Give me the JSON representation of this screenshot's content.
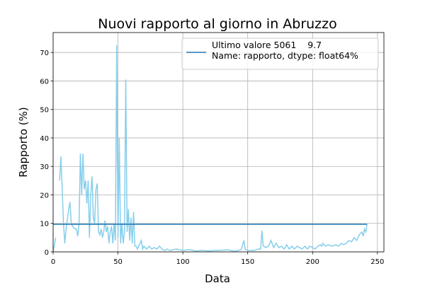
{
  "chart_data": {
    "type": "line",
    "title": "Nuovi rapporto al giorno in Abruzzo",
    "xlabel": "Data",
    "ylabel": "Rapporto (%)",
    "xlim": [
      0,
      255
    ],
    "ylim": [
      0,
      77
    ],
    "xticks": [
      0,
      50,
      100,
      150,
      200,
      250
    ],
    "yticks": [
      0,
      10,
      20,
      30,
      40,
      50,
      60,
      70
    ],
    "grid": true,
    "legend": "upper right",
    "series": [
      {
        "color": "#87ceeb",
        "x": [
          0,
          2,
          3,
          5,
          6,
          8,
          9,
          10,
          12,
          13,
          14,
          15,
          17,
          18,
          19,
          20,
          21,
          22,
          23,
          24,
          25,
          26,
          27,
          28,
          29,
          30,
          31,
          32,
          33,
          34,
          35,
          36,
          37,
          38,
          39,
          40,
          41,
          42,
          43,
          44,
          45,
          46,
          47,
          48,
          49,
          50,
          51,
          52,
          53,
          54,
          55,
          56,
          57,
          58,
          59,
          60,
          61,
          62,
          63,
          64,
          65,
          66,
          67,
          68,
          69,
          70,
          72,
          74,
          76,
          78,
          80,
          82,
          84,
          86,
          88,
          90,
          95,
          100,
          105,
          110,
          115,
          120,
          125,
          130,
          135,
          140,
          145,
          147,
          148,
          150,
          155,
          158,
          160,
          161,
          162,
          164,
          166,
          168,
          170,
          172,
          174,
          176,
          178,
          180,
          182,
          184,
          186,
          188,
          190,
          192,
          194,
          196,
          198,
          200,
          202,
          204,
          206,
          207,
          208,
          210,
          212,
          215,
          218,
          220,
          222,
          224,
          226,
          228,
          230,
          232,
          234,
          236,
          238,
          239,
          240,
          241,
          242
        ],
        "values": [
          0,
          5,
          null,
          25,
          33.5,
          10,
          3,
          8,
          15,
          17.5,
          10,
          9,
          8,
          8,
          5.5,
          10,
          34.5,
          20,
          34.5,
          22,
          25,
          17,
          25,
          5,
          20,
          26.5,
          12,
          10,
          22,
          24,
          7,
          6,
          8,
          5,
          7,
          11,
          7,
          9,
          3,
          7,
          9,
          3,
          10,
          4,
          72.5,
          5,
          40,
          3,
          10,
          3,
          7,
          60.5,
          7,
          15,
          4,
          12,
          3,
          14,
          2,
          2,
          1,
          2,
          3,
          4,
          1,
          2,
          1,
          2,
          1,
          1.5,
          1,
          2,
          1,
          0.5,
          1,
          0.5,
          1,
          0.5,
          0.8,
          0.3,
          0.5,
          0.3,
          0.5,
          0.6,
          0.7,
          0.2,
          0.8,
          4,
          1,
          0.5,
          0.5,
          1,
          1,
          7.5,
          2,
          1.5,
          2,
          4,
          1.5,
          3,
          1.5,
          2,
          1,
          2.5,
          1,
          2,
          1,
          2,
          1.5,
          1,
          2,
          1,
          2,
          1.5,
          1,
          2,
          2.5,
          2,
          3,
          2,
          2.5,
          2,
          2.5,
          2,
          3,
          2.5,
          3,
          4,
          3.5,
          5,
          4,
          6,
          7,
          5.5,
          8,
          7,
          9.7
        ]
      },
      {
        "name": "Ultimo valore 5061    9.7\nName: rapporto, dtype: float64%",
        "color": "#1f77b4",
        "x": [
          0,
          242
        ],
        "values": [
          9.7,
          9.7
        ]
      }
    ]
  }
}
